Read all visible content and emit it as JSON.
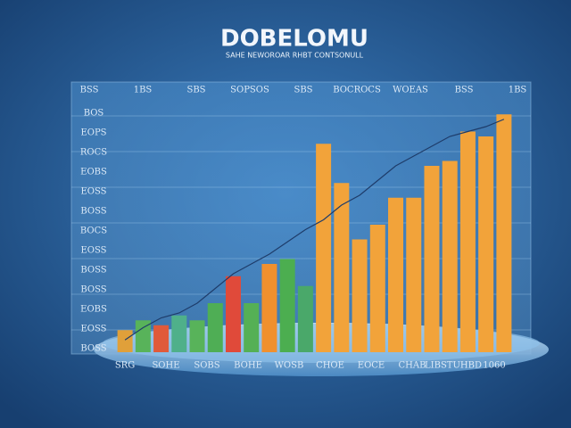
{
  "chart_data": {
    "type": "bar",
    "title": "DOBELOMU",
    "subtitle": "SAHE NEWOROAR  RHBT CONTSONULL",
    "header_labels": [
      "BSS",
      "1BS",
      "SBS",
      "SOPSOS",
      "SBS",
      "BOCROCS",
      "WOEAS",
      "BSS",
      "1BS"
    ],
    "left_labels": [
      "BOS",
      "EOPS",
      "ROCS",
      "EOBS",
      "EOSS",
      "BOSS",
      "BOCS",
      "EOSS",
      "BOSS",
      "BOSS",
      "EOBS",
      "EOSS",
      "BOSS"
    ],
    "bottom_labels": [
      "SRG",
      "SOHE",
      "SOBS",
      "BOHE",
      "WOSB",
      "CHOE",
      "EOCE",
      "CHAB",
      "LIBSTUHBD",
      "1060"
    ],
    "values": [
      9,
      13,
      11,
      15,
      13,
      20,
      31,
      20,
      36,
      38,
      27,
      85,
      69,
      46,
      52,
      63,
      63,
      76,
      78,
      90,
      88,
      97
    ],
    "colors": [
      "#e0a03a",
      "#58b35a",
      "#e05a3a",
      "#4fb08a",
      "#58b35a",
      "#4fae55",
      "#e04a3a",
      "#55b055",
      "#f0902e",
      "#4cae50",
      "#4aa86a",
      "#f2a33a",
      "#f2a33a",
      "#f2a33a",
      "#f2a33a",
      "#f2a33a",
      "#f2a33a",
      "#f2a33a",
      "#f2a33a",
      "#f2a33a",
      "#f2a33a",
      "#f2a33a"
    ],
    "line": [
      5,
      10,
      14,
      16,
      20,
      26,
      32,
      36,
      40,
      45,
      50,
      54,
      60,
      64,
      70,
      76,
      80,
      84,
      88,
      90,
      92,
      95
    ],
    "line_color": "#1e3c6a",
    "ylim": [
      0,
      100
    ]
  }
}
